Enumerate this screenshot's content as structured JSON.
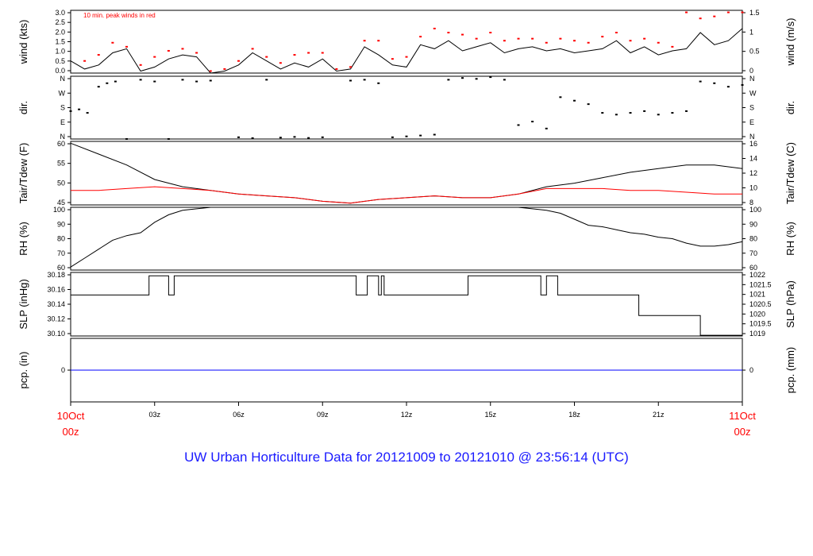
{
  "title": "UW Urban Horticulture Data for 20121009  to  20121010 @ 23:56:14  (UTC)",
  "colors": {
    "line": "#000000",
    "red": "#ff0000",
    "blue": "#0000ff",
    "title": "#1a1aff"
  },
  "chart_data": [
    {
      "type": "line",
      "panel": "wind",
      "ylabel_left": "wind (kts)",
      "ylabel_right": "wind (m/s)",
      "annotation": "10 min. peak winds in red",
      "ylim": [
        0,
        3.1
      ],
      "yticks_left": [
        "0.0",
        "0.5",
        "1.0",
        "1.5",
        "2.0",
        "2.5",
        "3.0"
      ],
      "yticks_right": [
        "0",
        "0.5",
        "1",
        "1.5"
      ],
      "series": [
        {
          "name": "",
          "color": "#000000",
          "x_hours": [
            0,
            0.5,
            1,
            1.5,
            2,
            2.5,
            3,
            3.5,
            4,
            4.5,
            5,
            5.5,
            6,
            6.5,
            7,
            7.5,
            8,
            8.5,
            9,
            9.5,
            10,
            10.5,
            11,
            11.5,
            12,
            12.5,
            13,
            13.5,
            14,
            14.5,
            15,
            15.5,
            16,
            16.5,
            17,
            17.5,
            18,
            18.5,
            19,
            19.5,
            20,
            20.5,
            21,
            21.5,
            22,
            22.5,
            23,
            23.5,
            24
          ],
          "values": [
            0.6,
            0.2,
            0.4,
            1.0,
            1.2,
            0.1,
            0.3,
            0.7,
            0.9,
            0.8,
            0.0,
            0.1,
            0.4,
            1.0,
            0.6,
            0.2,
            0.5,
            0.3,
            0.7,
            0.1,
            0.2,
            1.3,
            0.9,
            0.4,
            0.3,
            1.4,
            1.2,
            1.6,
            1.1,
            1.3,
            1.5,
            1.0,
            1.2,
            1.3,
            1.1,
            1.2,
            1.0,
            1.1,
            1.2,
            1.6,
            1.0,
            1.3,
            0.9,
            1.1,
            1.2,
            2.0,
            1.4,
            1.6,
            2.2
          ]
        },
        {
          "name": "10 min. peak winds",
          "color": "#ff0000",
          "x_hours": [
            0.5,
            1,
            1.5,
            2,
            2.5,
            3,
            3.5,
            4,
            4.5,
            5,
            5.5,
            6,
            6.5,
            7,
            7.5,
            8,
            8.5,
            9,
            9.5,
            10,
            10.5,
            11,
            11.5,
            12,
            12.5,
            13,
            13.5,
            14,
            14.5,
            15,
            15.5,
            16,
            16.5,
            17,
            17.5,
            18,
            18.5,
            19,
            19.5,
            20,
            20.5,
            21,
            21.5,
            22,
            22.5,
            23,
            23.5,
            24
          ],
          "values": [
            0.6,
            0.9,
            1.5,
            1.3,
            0.4,
            0.8,
            1.1,
            1.2,
            1.0,
            0.1,
            0.2,
            0.6,
            1.2,
            0.8,
            0.5,
            0.9,
            1.0,
            1.0,
            0.2,
            0.3,
            1.6,
            1.6,
            0.7,
            0.8,
            1.8,
            2.2,
            2.0,
            1.9,
            1.7,
            2.0,
            1.6,
            1.7,
            1.7,
            1.5,
            1.7,
            1.6,
            1.5,
            1.8,
            2.0,
            1.6,
            1.7,
            1.5,
            1.3,
            3.0,
            2.7,
            2.8,
            3.0,
            3.0
          ]
        }
      ]
    },
    {
      "type": "scatter",
      "panel": "dir",
      "ylabel_left": "dir.",
      "ylabel_right": "dir.",
      "yticks_left": [
        "N",
        "E",
        "S",
        "W",
        "N"
      ],
      "yticks_right": [
        "N",
        "E",
        "S",
        "W",
        "N"
      ],
      "ylim_deg": [
        0,
        360
      ],
      "series": [
        {
          "name": "",
          "color": "#000000",
          "x_hours": [
            0,
            0.3,
            0.6,
            1.0,
            1.3,
            1.6,
            2.0,
            2.5,
            3.0,
            3.5,
            4.0,
            4.5,
            5.0,
            6.0,
            6.5,
            7.0,
            7.5,
            8.0,
            8.5,
            9.0,
            10.0,
            10.5,
            11.0,
            11.5,
            12.0,
            12.5,
            13.0,
            13.5,
            14.0,
            14.5,
            15.0,
            15.5,
            16.0,
            16.5,
            17.0,
            17.5,
            18.0,
            18.5,
            19.0,
            19.5,
            20.0,
            20.5,
            21.0,
            21.5,
            22.0,
            22.5,
            23.0,
            23.5,
            24.0
          ],
          "values": [
            160,
            170,
            150,
            300,
            320,
            330,
            0,
            340,
            330,
            0,
            340,
            330,
            335,
            10,
            5,
            340,
            8,
            12,
            6,
            10,
            335,
            340,
            320,
            10,
            15,
            20,
            25,
            340,
            350,
            345,
            355,
            340,
            80,
            100,
            60,
            240,
            220,
            200,
            150,
            140,
            150,
            160,
            140,
            150,
            160,
            330,
            320,
            300,
            310
          ]
        }
      ]
    },
    {
      "type": "line",
      "panel": "temperature",
      "ylabel_left": "Tair/Tdew (F)",
      "ylabel_right": "Tair/Tdew (C)",
      "ylim": [
        44,
        61.5
      ],
      "yticks_left": [
        "45",
        "50",
        "55",
        "60"
      ],
      "yticks_right": [
        "8",
        "10",
        "12",
        "14",
        "16"
      ],
      "series": [
        {
          "name": "Tair",
          "color": "#000000",
          "x_hours": [
            0,
            1,
            2,
            3,
            4,
            5,
            6,
            7,
            8,
            9,
            10,
            11,
            12,
            13,
            14,
            15,
            16,
            17,
            18,
            19,
            20,
            21,
            22,
            23,
            24
          ],
          "values": [
            61,
            58,
            55,
            51,
            49,
            48,
            47,
            46.5,
            46,
            45,
            44.5,
            45.5,
            46,
            46.5,
            46,
            46,
            47,
            49,
            50,
            51.5,
            53,
            54,
            55,
            55,
            54
          ]
        },
        {
          "name": "Tdew",
          "color": "#ff0000",
          "x_hours": [
            0,
            1,
            2,
            3,
            4,
            5,
            6,
            7,
            8,
            9,
            10,
            11,
            12,
            13,
            14,
            15,
            16,
            17,
            18,
            19,
            20,
            21,
            22,
            23,
            24
          ],
          "values": [
            48,
            48,
            48.5,
            49,
            48.5,
            48,
            47,
            46.5,
            46,
            45,
            44.5,
            45.5,
            46,
            46.5,
            46,
            46,
            47,
            48.5,
            48.5,
            48.5,
            48,
            48,
            47.5,
            47,
            47
          ]
        }
      ]
    },
    {
      "type": "line",
      "panel": "rh",
      "ylabel_left": "RH (%)",
      "ylabel_right": "RH (%)",
      "ylim": [
        58,
        100
      ],
      "yticks_left": [
        "60",
        "70",
        "80",
        "90",
        "100"
      ],
      "yticks_right": [
        "60",
        "70",
        "80",
        "90",
        "100"
      ],
      "series": [
        {
          "name": "",
          "color": "#000000",
          "x_hours": [
            0,
            0.5,
            1,
            1.5,
            2,
            2.5,
            3,
            3.5,
            4,
            4.5,
            5,
            16,
            16.5,
            17,
            17.5,
            18,
            18.5,
            19,
            19.5,
            20,
            20.5,
            21,
            21.5,
            22,
            22.5,
            23,
            23.5,
            24
          ],
          "values": [
            60,
            66,
            72,
            78,
            81,
            83,
            90,
            95,
            98,
            99,
            100,
            100,
            99,
            98,
            96,
            92,
            88,
            87,
            85,
            83,
            82,
            80,
            79,
            76,
            74,
            74,
            75,
            77
          ]
        }
      ]
    },
    {
      "type": "line",
      "panel": "slp",
      "ylabel_left": "SLP (inHg)",
      "ylabel_right": "SLP (hPa)",
      "ylim": [
        30.092,
        30.185
      ],
      "yticks_left": [
        "30.10",
        "30.12",
        "30.14",
        "30.16",
        "30.18"
      ],
      "yticks_right": [
        "1019",
        "1019.5",
        "1020",
        "1020.5",
        "1021",
        "1021.5",
        "1022"
      ],
      "series": [
        {
          "name": "",
          "color": "#000000",
          "x_hours": [
            0,
            2.8,
            2.8,
            3.5,
            3.5,
            3.7,
            3.7,
            10.2,
            10.2,
            10.6,
            10.6,
            11.0,
            11.0,
            11.1,
            11.1,
            11.2,
            11.2,
            14.2,
            14.2,
            16.8,
            16.8,
            17.0,
            17.0,
            17.4,
            17.4,
            20.3,
            20.3,
            22.5,
            22.5,
            24
          ],
          "values": [
            30.152,
            30.152,
            30.18,
            30.18,
            30.152,
            30.152,
            30.18,
            30.18,
            30.152,
            30.152,
            30.18,
            30.18,
            30.152,
            30.152,
            30.18,
            30.18,
            30.152,
            30.152,
            30.18,
            30.18,
            30.152,
            30.152,
            30.18,
            30.18,
            30.152,
            30.152,
            30.122,
            30.122,
            30.093,
            30.093
          ]
        }
      ]
    },
    {
      "type": "line",
      "panel": "pcp",
      "ylabel_left": "pcp. (in)",
      "ylabel_right": "pcp. (mm)",
      "ylim": [
        -1,
        1
      ],
      "yticks_left": [
        "0"
      ],
      "yticks_right": [
        "0"
      ],
      "series": [
        {
          "name": "",
          "color": "#0000ff",
          "x_hours": [
            0,
            24
          ],
          "values": [
            0,
            0
          ]
        }
      ]
    }
  ],
  "x_axis": {
    "range_hours": [
      0,
      24
    ],
    "ticks": [
      "03z",
      "06z",
      "09z",
      "12z",
      "15z",
      "18z",
      "21z"
    ],
    "start_label": [
      "10Oct",
      "00z"
    ],
    "end_label": [
      "11Oct",
      "00z"
    ]
  }
}
